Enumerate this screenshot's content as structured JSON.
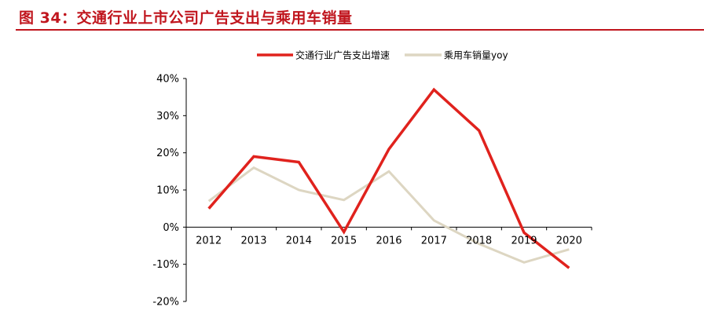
{
  "figure_title": "图 34：交通行业上市公司广告支出与乘用车销量",
  "colors": {
    "title": "#c0161e",
    "series1": "#e0221d",
    "series2": "#ddd6c2",
    "axis": "#000000"
  },
  "chart_data": {
    "type": "line",
    "title": "",
    "xlabel": "",
    "ylabel": "",
    "categories": [
      "2012",
      "2013",
      "2014",
      "2015",
      "2016",
      "2017",
      "2018",
      "2019",
      "2020"
    ],
    "ylim": [
      -0.2,
      0.4
    ],
    "yticks": [
      0.4,
      0.3,
      0.2,
      0.1,
      0.0,
      -0.1,
      -0.2
    ],
    "ytick_labels": [
      "40%",
      "30%",
      "20%",
      "10%",
      "0%",
      "-10%",
      "-20%"
    ],
    "grid": false,
    "legend_position": "top-center",
    "series": [
      {
        "name": "交通行业广告支出增速",
        "color": "#e0221d",
        "values": [
          0.05,
          0.19,
          0.175,
          -0.013,
          0.21,
          0.37,
          0.26,
          -0.015,
          -0.11
        ]
      },
      {
        "name": "乘用车销量yoy",
        "color": "#ddd6c2",
        "values": [
          0.07,
          0.16,
          0.1,
          0.073,
          0.15,
          0.018,
          -0.045,
          -0.095,
          -0.06
        ]
      }
    ]
  }
}
